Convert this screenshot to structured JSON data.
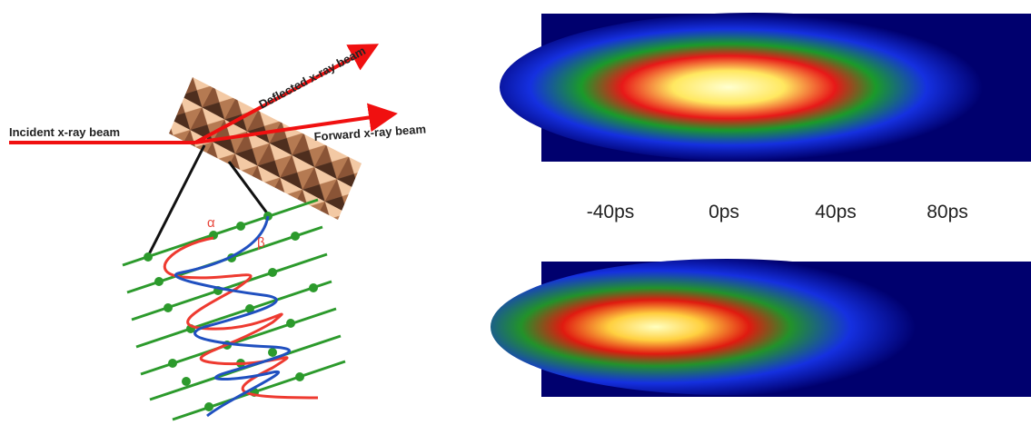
{
  "diagram": {
    "beams": {
      "incident": "Incident x-ray beam",
      "deflected": "Deflected x-ray beam",
      "forward": "Forward x-ray beam"
    },
    "strands": {
      "alpha": "α",
      "beta": "β"
    },
    "time_labels": [
      "-40ps",
      "0ps",
      "40ps",
      "80ps"
    ]
  }
}
